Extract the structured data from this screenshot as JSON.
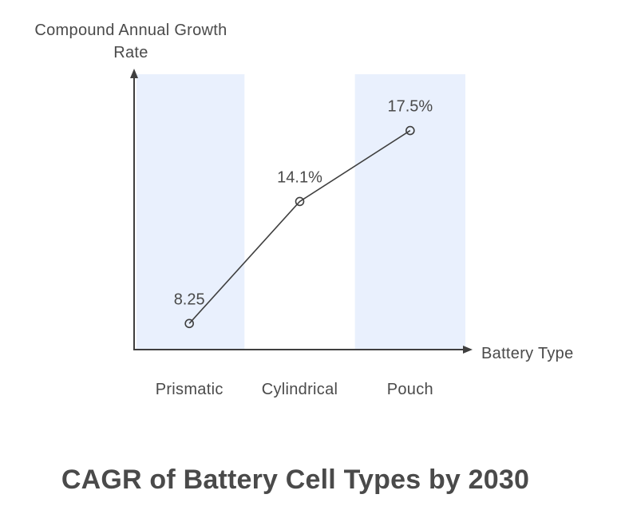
{
  "page": {
    "background": "#ffffff"
  },
  "chart_data": {
    "type": "line",
    "title": "CAGR of Battery Cell Types by 2030",
    "xlabel": "Battery Type",
    "ylabel": "Compound Annual Growth Rate",
    "ylabel_lines": [
      "Compound Annual Growth",
      "Rate"
    ],
    "categories": [
      "Prismatic",
      "Cylindrical",
      "Pouch"
    ],
    "values": [
      8.25,
      14.1,
      17.5
    ],
    "point_labels": [
      "8.25",
      "14.1%",
      "17.5%"
    ],
    "shaded_categories": [
      true,
      false,
      true
    ],
    "ylim": [
      7,
      20.2
    ],
    "grid": false,
    "legend": false,
    "marker": "open-circle",
    "colors": {
      "band": "#e9f0fd",
      "line": "#3f3f3f",
      "text": "#4a4a4a"
    }
  }
}
